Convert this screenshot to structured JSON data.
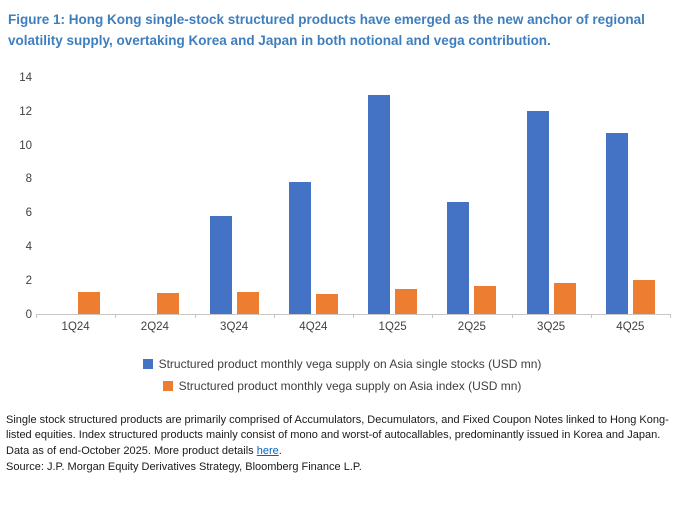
{
  "title": "Figure 1: Hong Kong single-stock structured products have emerged as the new anchor of regional volatility supply, overtaking Korea and Japan in both notional and vega contribution.",
  "colors": {
    "title_blue": "#3e7ebe",
    "bar_blue": "#4472C4",
    "bar_orange": "#ED7D31",
    "axis_gray": "#c6c6c6",
    "link_blue": "#0563c1"
  },
  "chart_data": {
    "type": "bar",
    "categories": [
      "1Q24",
      "2Q24",
      "3Q24",
      "4Q24",
      "1Q25",
      "2Q25",
      "3Q25",
      "4Q25"
    ],
    "series": [
      {
        "name": "Structured product monthly vega supply on Asia single stocks (USD mn)",
        "color": "#4472C4",
        "values": [
          0,
          0,
          5.8,
          7.8,
          12.9,
          6.6,
          12.0,
          10.7
        ]
      },
      {
        "name": "Structured product monthly vega supply on Asia index (USD mn)",
        "color": "#ED7D31",
        "values": [
          1.3,
          1.25,
          1.3,
          1.2,
          1.45,
          1.65,
          1.8,
          2.0
        ]
      }
    ],
    "title": "",
    "xlabel": "",
    "ylabel": "",
    "ylim": [
      0,
      14
    ],
    "ytick_step": 2,
    "grid": false,
    "legend_position": "bottom-center"
  },
  "footnote": {
    "text_before_link": "Single stock structured products are primarily comprised of Accumulators, Decumulators, and Fixed Coupon Notes linked to Hong Kong-listed equities. Index structured products mainly consist of mono and worst-of autocallables, predominantly issued in Korea and Japan. Data as of end-October 2025. More product details ",
    "link_text": "here",
    "text_after_link": ".",
    "source": "Source: J.P. Morgan Equity Derivatives Strategy, Bloomberg Finance L.P."
  }
}
